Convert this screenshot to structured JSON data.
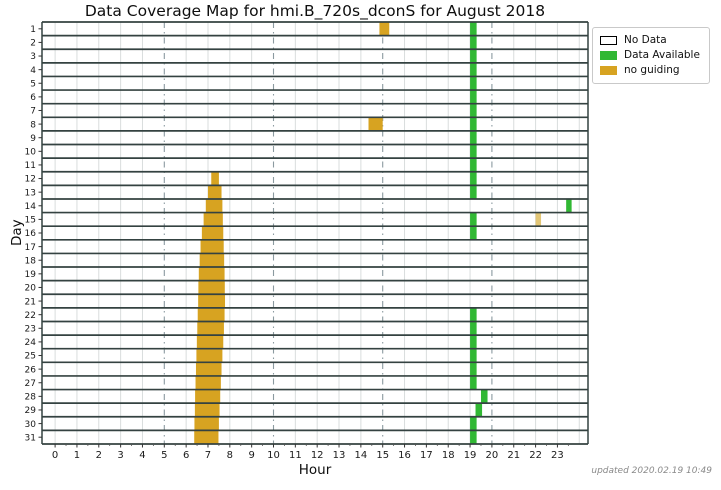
{
  "title": "Data Coverage Map for hmi.B_720s_dconS for August 2018",
  "updated_note": "updated 2020.02.19 10:49",
  "axes": {
    "x_label": "Hour",
    "y_label": "Day"
  },
  "legend": {
    "items": [
      {
        "label": "No Data",
        "kind": "no_data"
      },
      {
        "label": "Data Available",
        "kind": "available"
      },
      {
        "label": "no guiding",
        "kind": "no_guiding"
      }
    ],
    "position": "upper right outside"
  },
  "colors": {
    "no_data": "#ffffff",
    "available": "#31b834",
    "no_guiding": "#d7a321",
    "no_guiding_light": "#e2c676",
    "row_border": "#344241",
    "grid_minor": "#d9dddd",
    "grid_dashdot": "#8b9aa0",
    "tick_text": "#1a1a1a"
  },
  "chart_data": {
    "type": "heatmap",
    "subtype": "day-hour coverage gantt, one white-bordered row per day, colored segments mark coverage status",
    "title": "Data Coverage Map for hmi.B_720s_dconS for August 2018",
    "xlabel": "Hour",
    "ylabel": "Day",
    "xlim": [
      -0.6,
      24.4
    ],
    "x_ticks": [
      0,
      1,
      2,
      3,
      4,
      5,
      6,
      7,
      8,
      9,
      10,
      11,
      12,
      13,
      14,
      15,
      16,
      17,
      18,
      19,
      20,
      21,
      22,
      23
    ],
    "x_minor_tick_step": 0.5,
    "y_ticks": [
      1,
      2,
      3,
      4,
      5,
      6,
      7,
      8,
      9,
      10,
      11,
      12,
      13,
      14,
      15,
      16,
      17,
      18,
      19,
      20,
      21,
      22,
      23,
      24,
      25,
      26,
      27,
      28,
      29,
      30,
      31
    ],
    "grid": {
      "minor_solid_every_hour": true,
      "dashdot_hours": [
        5,
        10,
        15,
        20
      ]
    },
    "legend_entries": [
      "No Data",
      "Data Available",
      "no guiding"
    ],
    "segments": [
      {
        "day": 1,
        "start": 14.85,
        "end": 15.3,
        "kind": "no_guiding"
      },
      {
        "day": 1,
        "start": 19.0,
        "end": 19.3,
        "kind": "available"
      },
      {
        "day": 2,
        "start": 19.0,
        "end": 19.3,
        "kind": "available"
      },
      {
        "day": 3,
        "start": 19.0,
        "end": 19.3,
        "kind": "available"
      },
      {
        "day": 4,
        "start": 19.0,
        "end": 19.3,
        "kind": "available"
      },
      {
        "day": 5,
        "start": 19.0,
        "end": 19.3,
        "kind": "available"
      },
      {
        "day": 6,
        "start": 19.0,
        "end": 19.3,
        "kind": "available"
      },
      {
        "day": 7,
        "start": 19.0,
        "end": 19.3,
        "kind": "available"
      },
      {
        "day": 8,
        "start": 14.35,
        "end": 15.0,
        "kind": "no_guiding"
      },
      {
        "day": 8,
        "start": 19.0,
        "end": 19.3,
        "kind": "available"
      },
      {
        "day": 9,
        "start": 19.0,
        "end": 19.3,
        "kind": "available"
      },
      {
        "day": 10,
        "start": 19.0,
        "end": 19.3,
        "kind": "available"
      },
      {
        "day": 11,
        "start": 19.0,
        "end": 19.3,
        "kind": "available"
      },
      {
        "day": 12,
        "start": 7.15,
        "end": 7.5,
        "kind": "no_guiding"
      },
      {
        "day": 12,
        "start": 19.0,
        "end": 19.3,
        "kind": "available"
      },
      {
        "day": 13,
        "start": 7.0,
        "end": 7.62,
        "kind": "no_guiding"
      },
      {
        "day": 13,
        "start": 19.0,
        "end": 19.3,
        "kind": "available"
      },
      {
        "day": 14,
        "start": 6.9,
        "end": 7.66,
        "kind": "no_guiding"
      },
      {
        "day": 14,
        "start": 23.4,
        "end": 23.65,
        "kind": "available"
      },
      {
        "day": 15,
        "start": 6.8,
        "end": 7.68,
        "kind": "no_guiding"
      },
      {
        "day": 15,
        "start": 19.0,
        "end": 19.3,
        "kind": "available"
      },
      {
        "day": 15,
        "start": 22.0,
        "end": 22.25,
        "kind": "no_guiding_light"
      },
      {
        "day": 16,
        "start": 6.72,
        "end": 7.7,
        "kind": "no_guiding"
      },
      {
        "day": 16,
        "start": 19.0,
        "end": 19.3,
        "kind": "available"
      },
      {
        "day": 17,
        "start": 6.66,
        "end": 7.72,
        "kind": "no_guiding"
      },
      {
        "day": 18,
        "start": 6.62,
        "end": 7.74,
        "kind": "no_guiding"
      },
      {
        "day": 19,
        "start": 6.58,
        "end": 7.76,
        "kind": "no_guiding"
      },
      {
        "day": 20,
        "start": 6.56,
        "end": 7.77,
        "kind": "no_guiding"
      },
      {
        "day": 21,
        "start": 6.55,
        "end": 7.78,
        "kind": "no_guiding"
      },
      {
        "day": 22,
        "start": 6.53,
        "end": 7.76,
        "kind": "no_guiding"
      },
      {
        "day": 22,
        "start": 19.0,
        "end": 19.3,
        "kind": "available"
      },
      {
        "day": 23,
        "start": 6.51,
        "end": 7.73,
        "kind": "no_guiding"
      },
      {
        "day": 23,
        "start": 19.0,
        "end": 19.3,
        "kind": "available"
      },
      {
        "day": 24,
        "start": 6.49,
        "end": 7.7,
        "kind": "no_guiding"
      },
      {
        "day": 24,
        "start": 19.0,
        "end": 19.3,
        "kind": "available"
      },
      {
        "day": 25,
        "start": 6.47,
        "end": 7.66,
        "kind": "no_guiding"
      },
      {
        "day": 25,
        "start": 19.0,
        "end": 19.3,
        "kind": "available"
      },
      {
        "day": 26,
        "start": 6.45,
        "end": 7.62,
        "kind": "no_guiding"
      },
      {
        "day": 26,
        "start": 19.0,
        "end": 19.3,
        "kind": "available"
      },
      {
        "day": 27,
        "start": 6.43,
        "end": 7.59,
        "kind": "no_guiding"
      },
      {
        "day": 27,
        "start": 19.0,
        "end": 19.3,
        "kind": "available"
      },
      {
        "day": 28,
        "start": 6.41,
        "end": 7.56,
        "kind": "no_guiding"
      },
      {
        "day": 28,
        "start": 19.5,
        "end": 19.8,
        "kind": "available"
      },
      {
        "day": 29,
        "start": 6.4,
        "end": 7.53,
        "kind": "no_guiding"
      },
      {
        "day": 29,
        "start": 19.25,
        "end": 19.55,
        "kind": "available"
      },
      {
        "day": 30,
        "start": 6.38,
        "end": 7.5,
        "kind": "no_guiding"
      },
      {
        "day": 30,
        "start": 19.0,
        "end": 19.3,
        "kind": "available"
      },
      {
        "day": 31,
        "start": 6.37,
        "end": 7.48,
        "kind": "no_guiding"
      },
      {
        "day": 31,
        "start": 19.0,
        "end": 19.3,
        "kind": "available"
      }
    ]
  }
}
